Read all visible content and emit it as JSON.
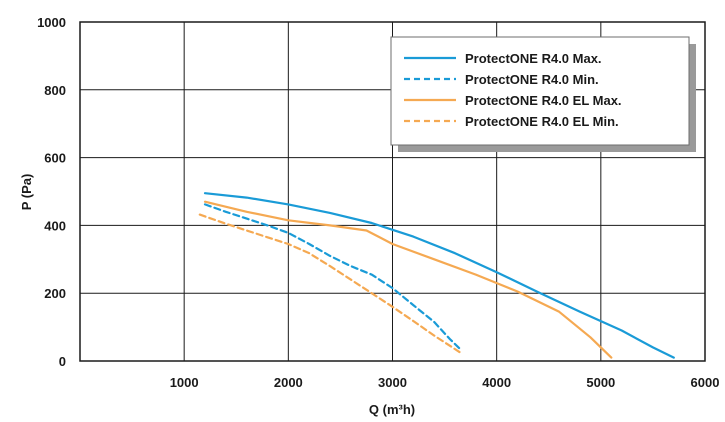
{
  "chart_data": {
    "type": "line",
    "xlabel": "Q (m³h)",
    "ylabel": "P (Pa)",
    "xlim": [
      0,
      6000
    ],
    "ylim": [
      0,
      1000
    ],
    "x_ticks": [
      "1000",
      "2000",
      "3000",
      "4000",
      "5000",
      "6000"
    ],
    "y_ticks": [
      "0",
      "200",
      "400",
      "600",
      "800",
      "1000"
    ],
    "grid": true,
    "legend_position": "top-right",
    "series": [
      {
        "name": "ProtectONE R4.0 Max.",
        "color": "#1a9bd7",
        "dash": "solid",
        "points": [
          [
            1200,
            495
          ],
          [
            1600,
            482
          ],
          [
            2000,
            462
          ],
          [
            2400,
            437
          ],
          [
            2800,
            407
          ],
          [
            3200,
            367
          ],
          [
            3600,
            318
          ],
          [
            4000,
            262
          ],
          [
            4400,
            203
          ],
          [
            4800,
            145
          ],
          [
            5200,
            90
          ],
          [
            5500,
            40
          ],
          [
            5700,
            10
          ]
        ]
      },
      {
        "name": "ProtectONE R4.0 Min.",
        "color": "#1a9bd7",
        "dash": "dashed",
        "points": [
          [
            1200,
            462
          ],
          [
            1400,
            440
          ],
          [
            1600,
            420
          ],
          [
            1800,
            400
          ],
          [
            2000,
            378
          ],
          [
            2200,
            345
          ],
          [
            2400,
            310
          ],
          [
            2600,
            280
          ],
          [
            2800,
            255
          ],
          [
            3000,
            215
          ],
          [
            3200,
            165
          ],
          [
            3400,
            115
          ],
          [
            3550,
            65
          ],
          [
            3650,
            35
          ]
        ]
      },
      {
        "name": "ProtectONE R4.0 EL Max.",
        "color": "#f5a952",
        "dash": "solid",
        "points": [
          [
            1200,
            470
          ],
          [
            1600,
            440
          ],
          [
            2000,
            415
          ],
          [
            2400,
            400
          ],
          [
            2750,
            385
          ],
          [
            3000,
            345
          ],
          [
            3400,
            300
          ],
          [
            3800,
            255
          ],
          [
            4200,
            205
          ],
          [
            4600,
            145
          ],
          [
            4900,
            70
          ],
          [
            5100,
            10
          ]
        ]
      },
      {
        "name": "ProtectONE R4.0 EL Min.",
        "color": "#f5a952",
        "dash": "dashed",
        "points": [
          [
            1150,
            432
          ],
          [
            1400,
            405
          ],
          [
            1600,
            385
          ],
          [
            1800,
            365
          ],
          [
            2000,
            345
          ],
          [
            2200,
            318
          ],
          [
            2400,
            280
          ],
          [
            2600,
            240
          ],
          [
            2800,
            200
          ],
          [
            3000,
            160
          ],
          [
            3200,
            118
          ],
          [
            3400,
            75
          ],
          [
            3550,
            45
          ],
          [
            3650,
            25
          ]
        ]
      }
    ]
  }
}
